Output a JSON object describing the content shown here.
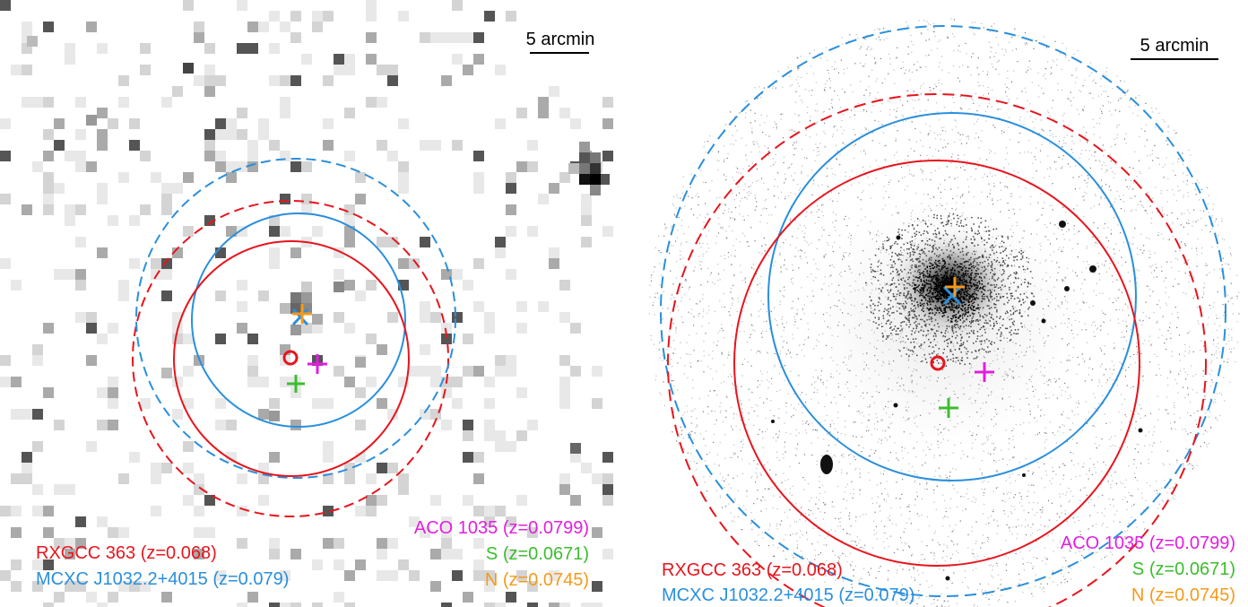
{
  "colors": {
    "rxgcc": "#e8141c",
    "mcxc": "#2a8fdc",
    "aco": "#e21ee0",
    "s": "#3cbd2e",
    "n": "#f59a1a"
  },
  "left_panel": {
    "scale_label": "5 arcmin",
    "legend": {
      "rxgcc": "RXGCC 363 (z=0.068)",
      "mcxc": "MCXC J1032.2+4015 (z=0.079)",
      "aco": "ACO 1035 (z=0.0799)",
      "s": "S (z=0.0671)",
      "n": "N (z=0.0745)"
    }
  },
  "right_panel": {
    "scale_label": "5 arcmin",
    "legend": {
      "rxgcc": "RXGCC 363 (z=0.068)",
      "mcxc": "MCXC J1032.2+4015 (z=0.079)",
      "aco": "ACO 1035 (z=0.0799)",
      "s": "S (z=0.0671)",
      "n": "N (z=0.0745)"
    }
  }
}
